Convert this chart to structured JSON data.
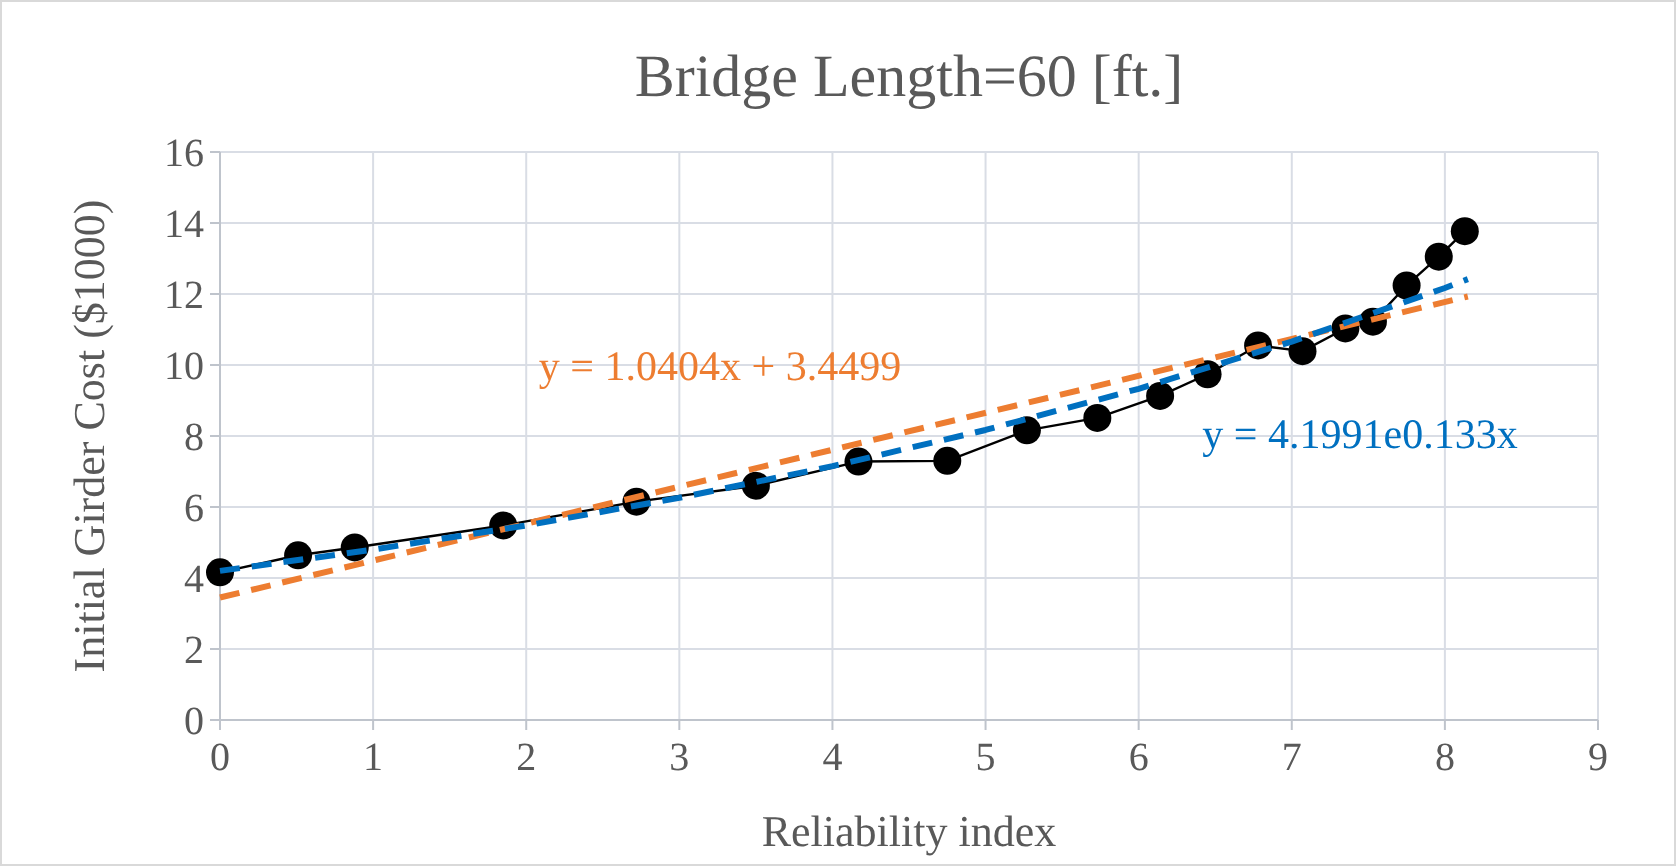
{
  "chart_data": {
    "type": "line",
    "title": "Bridge Length=60 [ft.]",
    "xlabel": "Reliability index",
    "ylabel": "Initial Girder Cost ($1000)",
    "xlim": [
      0,
      9
    ],
    "xticks": [
      0,
      1,
      2,
      3,
      4,
      5,
      6,
      7,
      8,
      9
    ],
    "ylim": [
      0,
      16
    ],
    "yticks": [
      0,
      2,
      4,
      6,
      8,
      10,
      12,
      14,
      16
    ],
    "grid": true,
    "series": [
      {
        "color": "#000000",
        "marker": "circle",
        "line_style": "solid",
        "x": [
          0,
          0.51,
          0.88,
          1.85,
          2.72,
          3.5,
          4.17,
          4.75,
          5.27,
          5.73,
          6.14,
          6.45,
          6.78,
          7.07,
          7.35,
          7.53,
          7.75,
          7.96,
          8.13
        ],
        "values": [
          4.16,
          4.64,
          4.86,
          5.48,
          6.15,
          6.6,
          7.28,
          7.3,
          8.16,
          8.51,
          9.13,
          9.74,
          10.55,
          10.39,
          11.03,
          11.22,
          12.24,
          13.05,
          13.77
        ]
      },
      {
        "color": "#ed7d31",
        "marker": "none",
        "line_style": "dashed",
        "x": [
          0,
          8.15
        ],
        "values": [
          3.45,
          11.93
        ]
      },
      {
        "color": "#0070c0",
        "marker": "none",
        "line_style": "dashed",
        "x": [
          0,
          1,
          2,
          3,
          4,
          5,
          6,
          7,
          8,
          8.15
        ],
        "values": [
          4.2,
          4.8,
          5.48,
          6.26,
          7.15,
          8.17,
          9.33,
          10.66,
          12.17,
          12.42
        ]
      }
    ],
    "annotations": [
      "y = 1.0404x + 3.4499",
      "y = 4.1991e0.133x"
    ]
  }
}
